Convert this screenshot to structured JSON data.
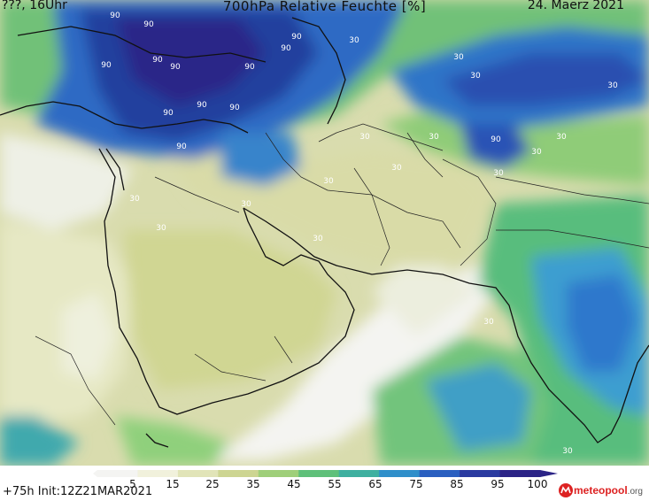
{
  "header": {
    "left": "???, 16Uhr",
    "title": "700hPa Relative Feuchte [%]",
    "date": "24. Maerz 2021"
  },
  "footer": {
    "init": "+75h  Init:12Z21MAR2021",
    "logo_text_main": "meteo",
    "logo_text_accent": "pool",
    "logo_text_tld": ".org"
  },
  "legend": {
    "ticks": [
      "5",
      "15",
      "25",
      "35",
      "45",
      "55",
      "65",
      "75",
      "85",
      "95",
      "100"
    ],
    "colors": [
      "#f4f4f2",
      "#f1f1dc",
      "#e1e4b8",
      "#cdd592",
      "#9fcf7a",
      "#5fc07a",
      "#3fb0a0",
      "#2f8fca",
      "#2a5fc0",
      "#2a3aa0",
      "#2b2386"
    ]
  },
  "isolines": {
    "labels": [
      "90",
      "90",
      "90",
      "90",
      "90",
      "90",
      "90",
      "90",
      "90",
      "90",
      "90",
      "90",
      "90",
      "30",
      "30",
      "30",
      "30",
      "30",
      "30",
      "30",
      "30",
      "30",
      "30",
      "30",
      "30",
      "30",
      "30",
      "30",
      "30",
      "30"
    ]
  }
}
